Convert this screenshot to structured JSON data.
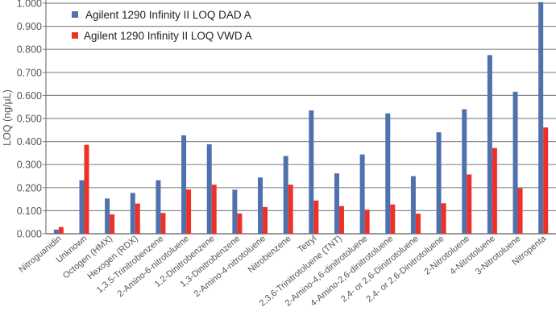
{
  "chart_data": {
    "type": "bar",
    "title": "",
    "xlabel": "",
    "ylabel": "LOQ (ng/µL)",
    "ylim": [
      0,
      1.0
    ],
    "yticks": [
      0.0,
      0.1,
      0.2,
      0.3,
      0.4,
      0.5,
      0.6,
      0.7,
      0.8,
      0.9,
      1.0
    ],
    "ytick_labels": [
      "0.000",
      "0.100",
      "0.200",
      "0.300",
      "0.400",
      "0.500",
      "0.600",
      "0.700",
      "0.800",
      "0.900",
      "1.000"
    ],
    "grid": true,
    "legend_position": "top-left",
    "categories": [
      "Nitroguanidin",
      "Unknown",
      "Octogen (HMX)",
      "Hexogen (RDX)",
      "1,3,5-Trinitrobenzene",
      "2-Amino-6-nitrotoluene",
      "1,2-Dinitrobenzene",
      "1,3-Dinitrobenzene",
      "2-Amino-4-nitrotoluene",
      "Nitrobenzene",
      "Tetryl",
      "2,3,6-Trinitrotoluene (TNT)",
      "2-Amino-4,6-dinitrotoluene",
      "4-Amino-2,6-dinitrotoluene",
      "2,4- or 2,6-Dinitrotoluene",
      "2,4- or 2,6-Dinitrotoluene",
      "2-Nitrotoluene",
      "4-Nitrotoluene",
      "3-Nitrotoluene",
      "Nitropenta"
    ],
    "series": [
      {
        "name": "Agilent 1290 Infinity II LOQ DAD A",
        "color": "#4f72ad",
        "values": [
          0.018,
          0.232,
          0.153,
          0.177,
          0.232,
          0.427,
          0.388,
          0.191,
          0.244,
          0.337,
          0.535,
          0.262,
          0.344,
          0.522,
          0.25,
          0.44,
          0.54,
          0.775,
          0.616,
          1.005
        ]
      },
      {
        "name": "Agilent 1290 Infinity II LOQ VWD A",
        "color": "#ee3128",
        "values": [
          0.029,
          0.386,
          0.084,
          0.131,
          0.09,
          0.192,
          0.213,
          0.088,
          0.116,
          0.213,
          0.144,
          0.12,
          0.104,
          0.127,
          0.087,
          0.132,
          0.257,
          0.372,
          0.198,
          0.461
        ]
      }
    ]
  }
}
